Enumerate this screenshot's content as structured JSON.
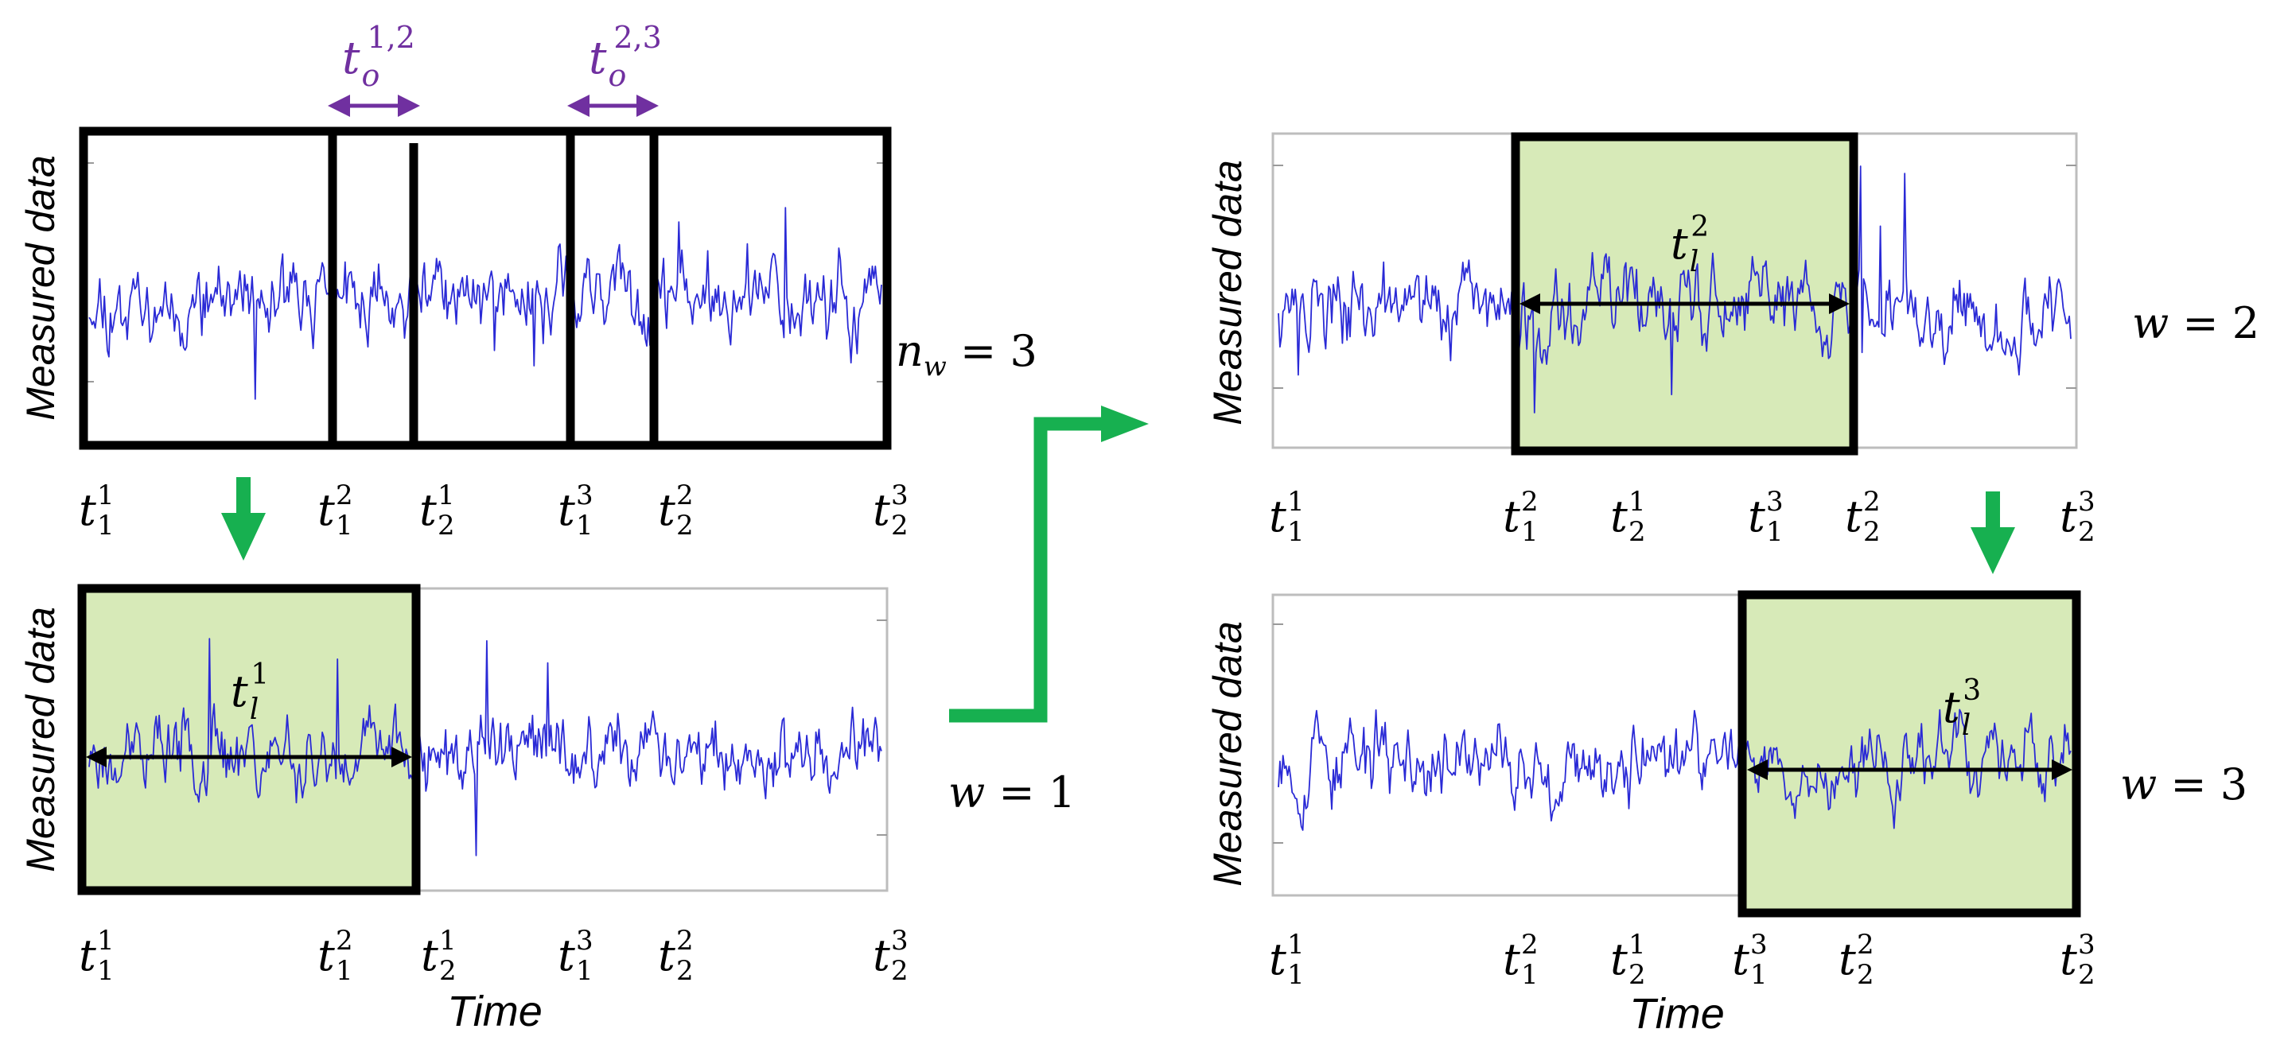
{
  "colors": {
    "signal": "#2a2ad6",
    "window_fill": "#d7eab8",
    "arrow": "#17b050",
    "overlap": "#7030a0",
    "frame": "#000000"
  },
  "axis": {
    "ylabel": "Measured data",
    "xlabel": "Time"
  },
  "ticks": {
    "p1": [
      [
        "t",
        "1",
        "1"
      ],
      [
        "t",
        "1",
        "2"
      ],
      [
        "t",
        "2",
        "1"
      ],
      [
        "t",
        "1",
        "3"
      ],
      [
        "t",
        "2",
        "2"
      ],
      [
        "t",
        "2",
        "3"
      ]
    ],
    "p2": [
      [
        "t",
        "1",
        "1"
      ],
      [
        "t",
        "1",
        "2"
      ],
      [
        "t",
        "2",
        "1"
      ],
      [
        "t",
        "1",
        "3"
      ],
      [
        "t",
        "2",
        "2"
      ],
      [
        "t",
        "2",
        "3"
      ]
    ],
    "p3": [
      [
        "t",
        "1",
        "1"
      ],
      [
        "t",
        "1",
        "2"
      ],
      [
        "t",
        "2",
        "1"
      ],
      [
        "t",
        "1",
        "3"
      ],
      [
        "t",
        "2",
        "2"
      ],
      [
        "t",
        "2",
        "3"
      ]
    ],
    "p4": [
      [
        "t",
        "1",
        "1"
      ],
      [
        "t",
        "1",
        "2"
      ],
      [
        "t",
        "2",
        "1"
      ],
      [
        "t",
        "1",
        "3"
      ],
      [
        "t",
        "2",
        "2"
      ],
      [
        "t",
        "2",
        "3"
      ]
    ]
  },
  "overlaps": [
    {
      "base": "t",
      "sub": "o",
      "sup": "1,2"
    },
    {
      "base": "t",
      "sub": "o",
      "sup": "2,3"
    }
  ],
  "window_lengths": [
    {
      "base": "t",
      "sub": "l",
      "sup": "1"
    },
    {
      "base": "t",
      "sub": "l",
      "sup": "2"
    },
    {
      "base": "t",
      "sub": "l",
      "sup": "3"
    }
  ],
  "labels": {
    "nw": {
      "var": "n",
      "sub": "w",
      "rest": " = 3"
    },
    "w1": {
      "var": "w",
      "rest": " = 1"
    },
    "w2": {
      "var": "w",
      "rest": " = 2"
    },
    "w3": {
      "var": "w",
      "rest": " = 3"
    }
  }
}
